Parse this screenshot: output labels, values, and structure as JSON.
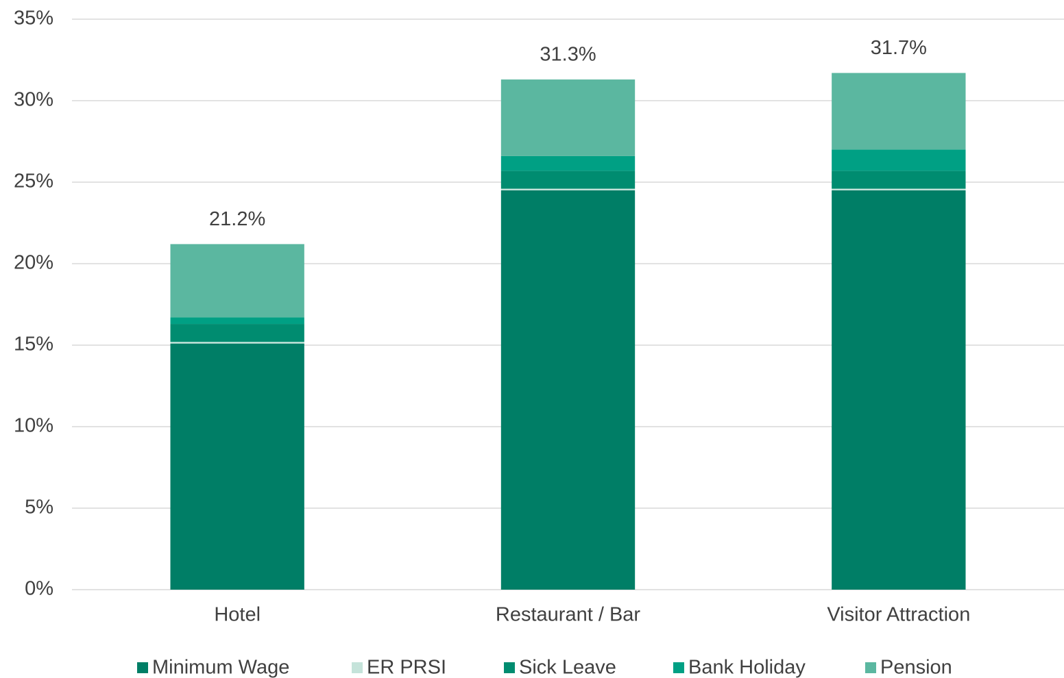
{
  "chart_data": {
    "type": "stacked_bar",
    "categories": [
      "Hotel",
      "Restaurant / Bar",
      "Visitor Attraction"
    ],
    "series": [
      {
        "name": "Minimum Wage",
        "color": "#007e66",
        "values": [
          15.1,
          24.5,
          24.5
        ]
      },
      {
        "name": "ER PRSI",
        "color": "#c5e3da",
        "values": [
          0.1,
          0.1,
          0.1
        ]
      },
      {
        "name": "Sick Leave",
        "color": "#008c70",
        "values": [
          1.1,
          1.1,
          1.1
        ]
      },
      {
        "name": "Bank Holiday",
        "color": "#00a084",
        "values": [
          0.4,
          0.9,
          1.3
        ]
      },
      {
        "name": "Pension",
        "color": "#5bb7a0",
        "values": [
          4.5,
          4.7,
          4.7
        ]
      }
    ],
    "totals": {
      "values": [
        21.2,
        31.3,
        31.7
      ],
      "value_labels": [
        "21.2%",
        "31.3%",
        "31.7%"
      ]
    },
    "ylim": [
      0,
      35
    ],
    "yticks": [
      {
        "value": 0,
        "label": "0%"
      },
      {
        "value": 5,
        "label": "5%"
      },
      {
        "value": 10,
        "label": "10%"
      },
      {
        "value": 15,
        "label": "15%"
      },
      {
        "value": 20,
        "label": "20%"
      },
      {
        "value": 25,
        "label": "25%"
      },
      {
        "value": 30,
        "label": "30%"
      },
      {
        "value": 35,
        "label": "35%"
      }
    ],
    "grid": true,
    "legend": "bottom"
  }
}
